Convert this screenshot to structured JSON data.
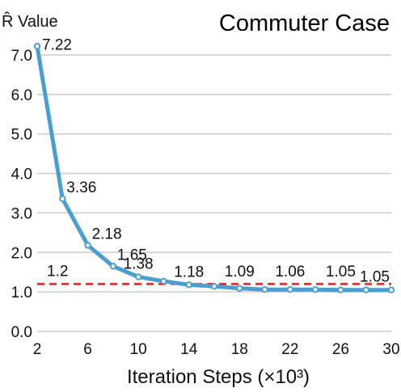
{
  "chart_data": {
    "type": "line",
    "title": "Commuter Case",
    "ylabel": "R̂ Value",
    "xlabel": "Iteration Steps (×10³)",
    "x": [
      2,
      4,
      6,
      8,
      10,
      12,
      14,
      16,
      18,
      20,
      22,
      24,
      26,
      28,
      30
    ],
    "series": [
      {
        "values": [
          7.22,
          3.36,
          2.18,
          1.65,
          1.38,
          1.27,
          1.18,
          1.14,
          1.09,
          1.06,
          1.06,
          1.06,
          1.05,
          1.05,
          1.05
        ],
        "color": "#4a9fd0"
      }
    ],
    "data_labels": [
      {
        "x": 2,
        "text": "7.22"
      },
      {
        "x": 4,
        "text": "3.36"
      },
      {
        "x": 6,
        "text": "2.18"
      },
      {
        "x": 8,
        "text": "1.65"
      },
      {
        "x": 10,
        "text": "1.38"
      },
      {
        "x": 14,
        "text": "1.18"
      },
      {
        "x": 18,
        "text": "1.09"
      },
      {
        "x": 22,
        "text": "1.06"
      },
      {
        "x": 26,
        "text": "1.05"
      },
      {
        "x": 30,
        "text": "1.05"
      }
    ],
    "reference_line": {
      "y": 1.2,
      "label": "1.2",
      "color": "#dd2222",
      "style": "dashed"
    },
    "xticks": [
      2,
      6,
      10,
      14,
      18,
      22,
      26,
      30
    ],
    "yticks": [
      0.0,
      1.0,
      2.0,
      3.0,
      4.0,
      5.0,
      6.0,
      7.0
    ],
    "ytick_labels": [
      "0.0",
      "1.0",
      "2.0",
      "3.0",
      "4.0",
      "5.0",
      "6.0",
      "7.0"
    ],
    "xlim": [
      2,
      30
    ],
    "ylim": [
      0,
      7.4
    ],
    "grid": "horizontal",
    "grid_color": "#cccccc",
    "legend": "none"
  }
}
